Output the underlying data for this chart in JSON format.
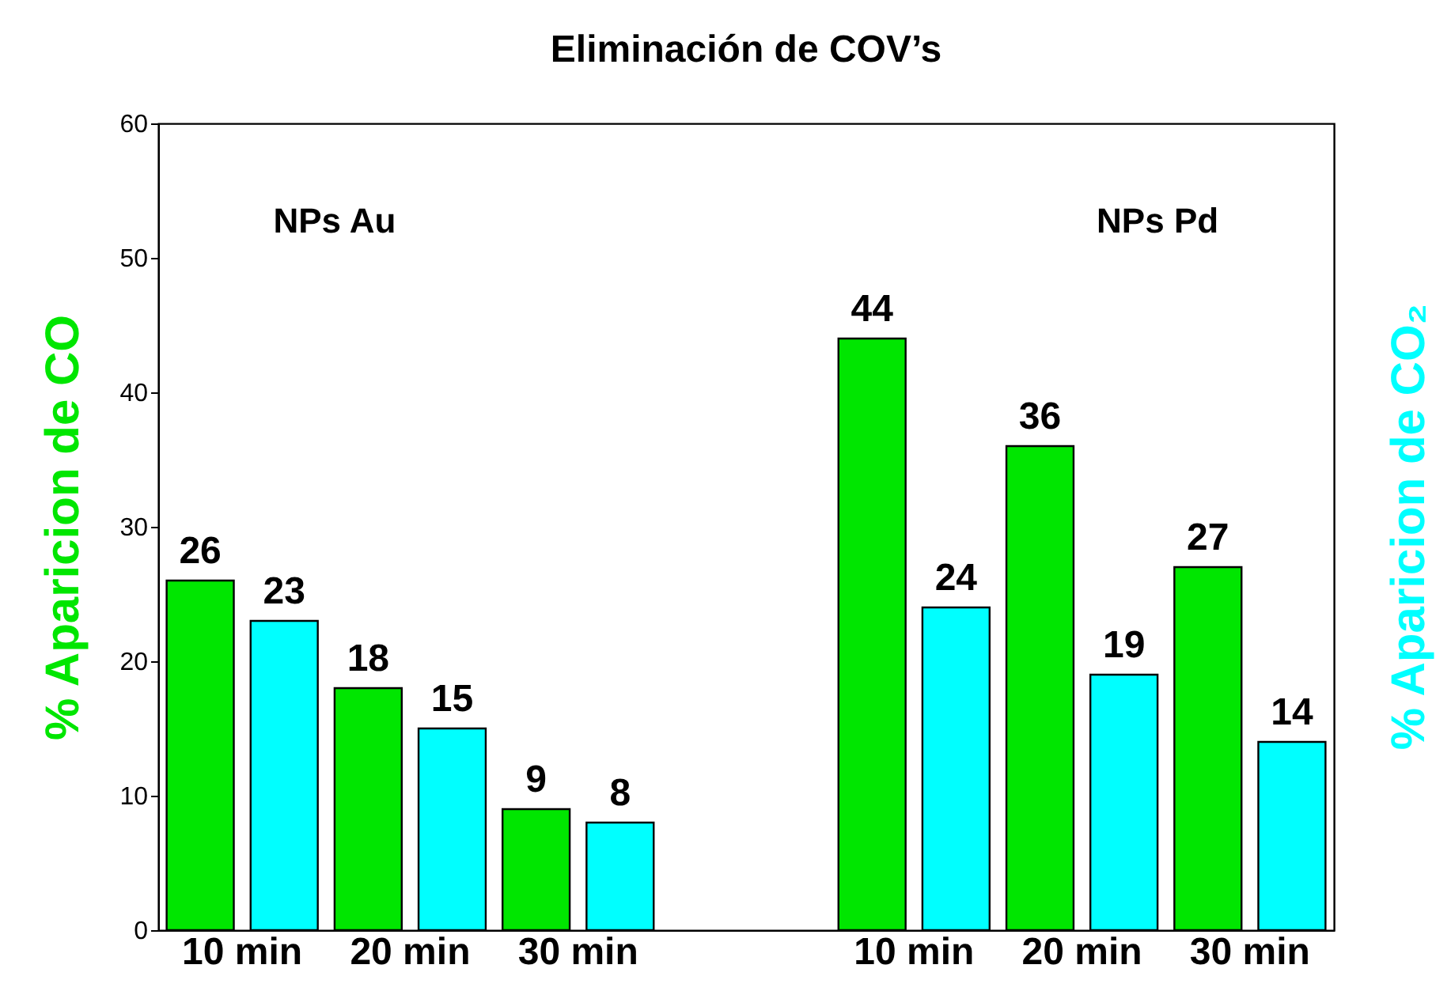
{
  "chart_data": {
    "type": "bar",
    "title": "Eliminación de COV’s",
    "ylabel": "% Aparicion de CO",
    "y2label": "% Aparicion de CO₂",
    "annotations": [
      "NPs Au",
      "NPs Pd"
    ],
    "categories": [
      "10 min",
      "20 min",
      "30 min",
      null,
      "10 min",
      "20 min",
      "30 min"
    ],
    "series": [
      {
        "color": "#00e600",
        "values": [
          26,
          18,
          9,
          null,
          44,
          36,
          27
        ]
      },
      {
        "color": "#00ffff",
        "values": [
          23,
          15,
          8,
          null,
          24,
          19,
          14
        ]
      }
    ],
    "ylim": [
      0,
      60
    ],
    "yticks": [
      0,
      10,
      20,
      30,
      40,
      50,
      60
    ],
    "data_labels": true,
    "grid": false,
    "legend": false
  }
}
